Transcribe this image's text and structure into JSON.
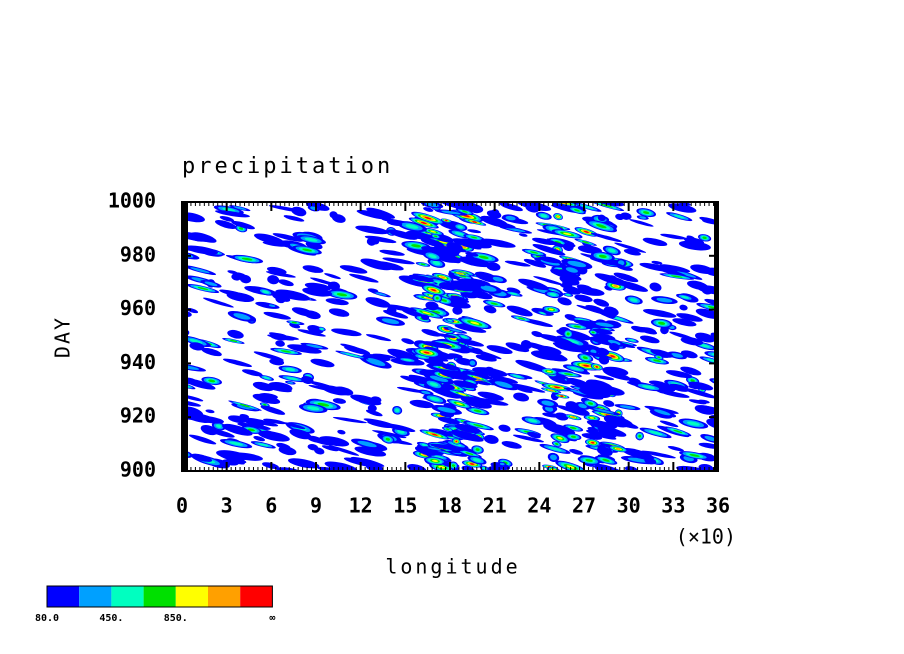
{
  "chart_data": {
    "type": "contour",
    "title": "precipitation",
    "x_label": "longitude",
    "y_label": "DAY",
    "x_multiplier_label": "(×10)",
    "xlim": [
      0,
      360
    ],
    "xticks": [
      {
        "value": 0,
        "label": "0"
      },
      {
        "value": 30,
        "label": "3"
      },
      {
        "value": 60,
        "label": "6"
      },
      {
        "value": 90,
        "label": "9"
      },
      {
        "value": 120,
        "label": "12"
      },
      {
        "value": 150,
        "label": "15"
      },
      {
        "value": 180,
        "label": "18"
      },
      {
        "value": 210,
        "label": "21"
      },
      {
        "value": 240,
        "label": "24"
      },
      {
        "value": 270,
        "label": "27"
      },
      {
        "value": 300,
        "label": "30"
      },
      {
        "value": 330,
        "label": "33"
      },
      {
        "value": 360,
        "label": "36"
      }
    ],
    "ylim": [
      900,
      1000
    ],
    "yticks": [
      900,
      920,
      940,
      960,
      980,
      1000
    ],
    "colorbar": {
      "colors": [
        "#0000ff",
        "#00a0ff",
        "#00ffc0",
        "#00e000",
        "#ffff00",
        "#ffa000",
        "#ff0000"
      ],
      "labels": [
        {
          "value": 80,
          "label": "80.0"
        },
        {
          "value": 450,
          "label": "450."
        },
        {
          "value": 850,
          "label": "850."
        },
        {
          "label": "∞"
        }
      ]
    }
  }
}
